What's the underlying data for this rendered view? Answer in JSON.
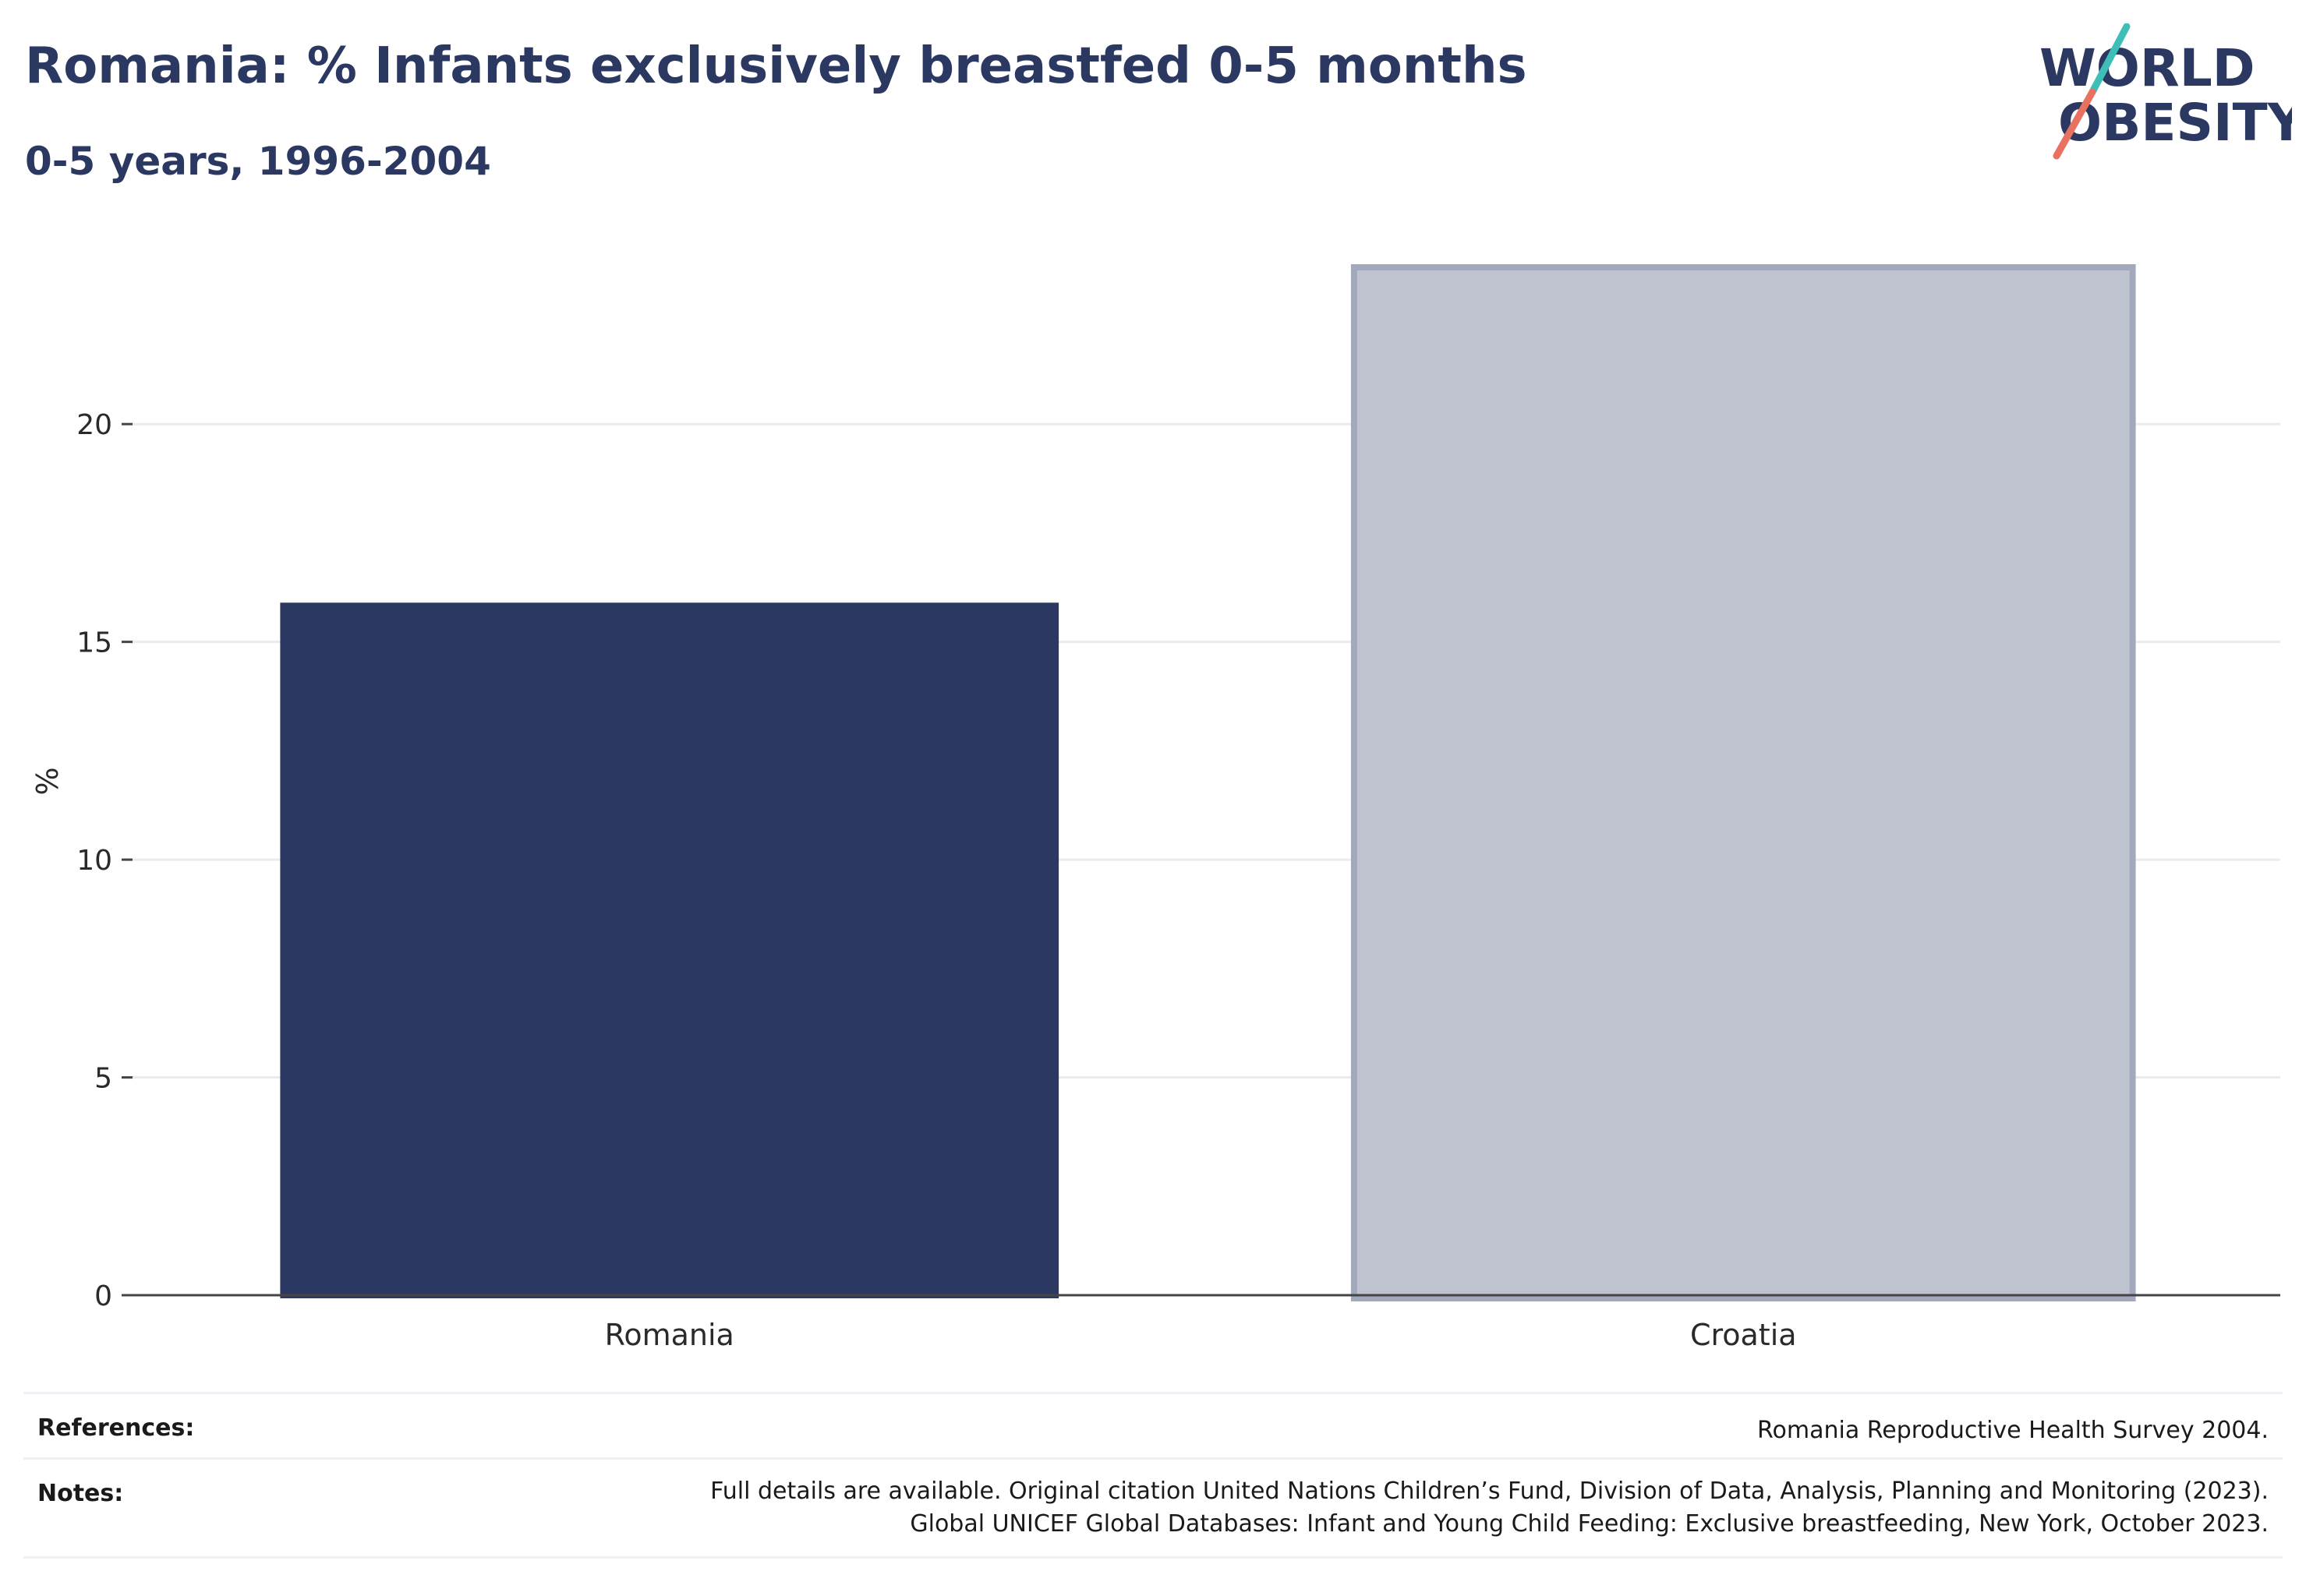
{
  "header": {
    "title": "Romania: % Infants exclusively breastfed 0-5 months",
    "subtitle": "0-5 years, 1996-2004"
  },
  "logo": {
    "line1": "WORLD",
    "line2": "OBESITY",
    "accent_teal": "#3dbfb8",
    "accent_coral": "#e8725f"
  },
  "chart_data": {
    "type": "bar",
    "categories": [
      "Romania",
      "Croatia"
    ],
    "values": [
      15.9,
      23.6
    ],
    "ylabel": "%",
    "xlabel": "",
    "ylim": [
      0,
      23.6
    ],
    "yticks": [
      0,
      5,
      10,
      15,
      20
    ],
    "grid": true,
    "colors": [
      "#2b3862",
      "#bfc3cf"
    ],
    "highlight_category": "Romania"
  },
  "footer": {
    "references_label": "References:",
    "references_text": "Romania Reproductive Health Survey 2004.",
    "notes_label": "Notes:",
    "notes_line1": "Full details are available. Original citation United Nations Children’s Fund, Division of Data, Analysis, Planning and Monitoring (2023).",
    "notes_line2": "Global UNICEF Global Databases: Infant and Young Child Feeding: Exclusive breastfeeding, New York, October 2023."
  }
}
